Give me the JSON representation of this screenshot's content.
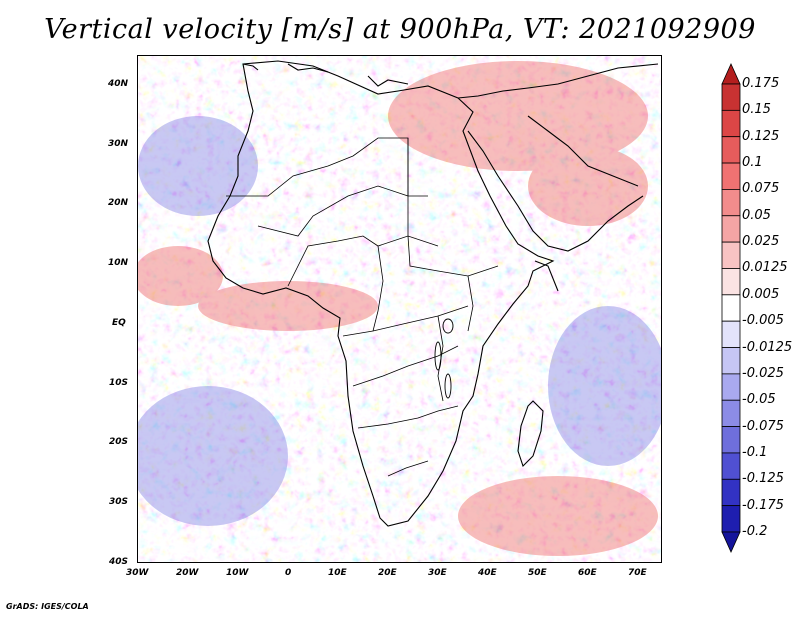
{
  "title": "Vertical velocity [m/s] at 900hPa, VT: 2021092909",
  "credit": "GrADS: IGES/COLA",
  "map": {
    "region": "Africa",
    "variable": "Vertical velocity",
    "units": "m/s",
    "level": "900hPa",
    "valid_time": "2021092909",
    "lat_range": [
      -40,
      45
    ],
    "lon_range": [
      -30,
      75
    ],
    "lat_labels": [
      "40N",
      "30N",
      "20N",
      "10N",
      "EQ",
      "10S",
      "20S",
      "30S",
      "40S"
    ],
    "lon_labels": [
      "30W",
      "20W",
      "10W",
      "0",
      "10E",
      "20E",
      "30E",
      "40E",
      "50E",
      "60E",
      "70E"
    ]
  },
  "colorbar": {
    "labels": [
      "0.175",
      "0.15",
      "0.125",
      "0.1",
      "0.075",
      "0.05",
      "0.025",
      "0.0125",
      "0.005",
      "-0.005",
      "-0.0125",
      "-0.025",
      "-0.05",
      "-0.075",
      "-0.1",
      "-0.125",
      "-0.175",
      "-0.2"
    ],
    "colors": [
      "#b41e1e",
      "#c83232",
      "#dc4646",
      "#e65c5c",
      "#f07272",
      "#f28c8c",
      "#f5a5a5",
      "#f8c3c3",
      "#fbe3e3",
      "#ffffff",
      "#e3e3fb",
      "#c6c6f5",
      "#a9a9ef",
      "#8c8ce6",
      "#6f6fdc",
      "#5050d2",
      "#3232c3",
      "#1e1eaf",
      "#14149b"
    ]
  }
}
